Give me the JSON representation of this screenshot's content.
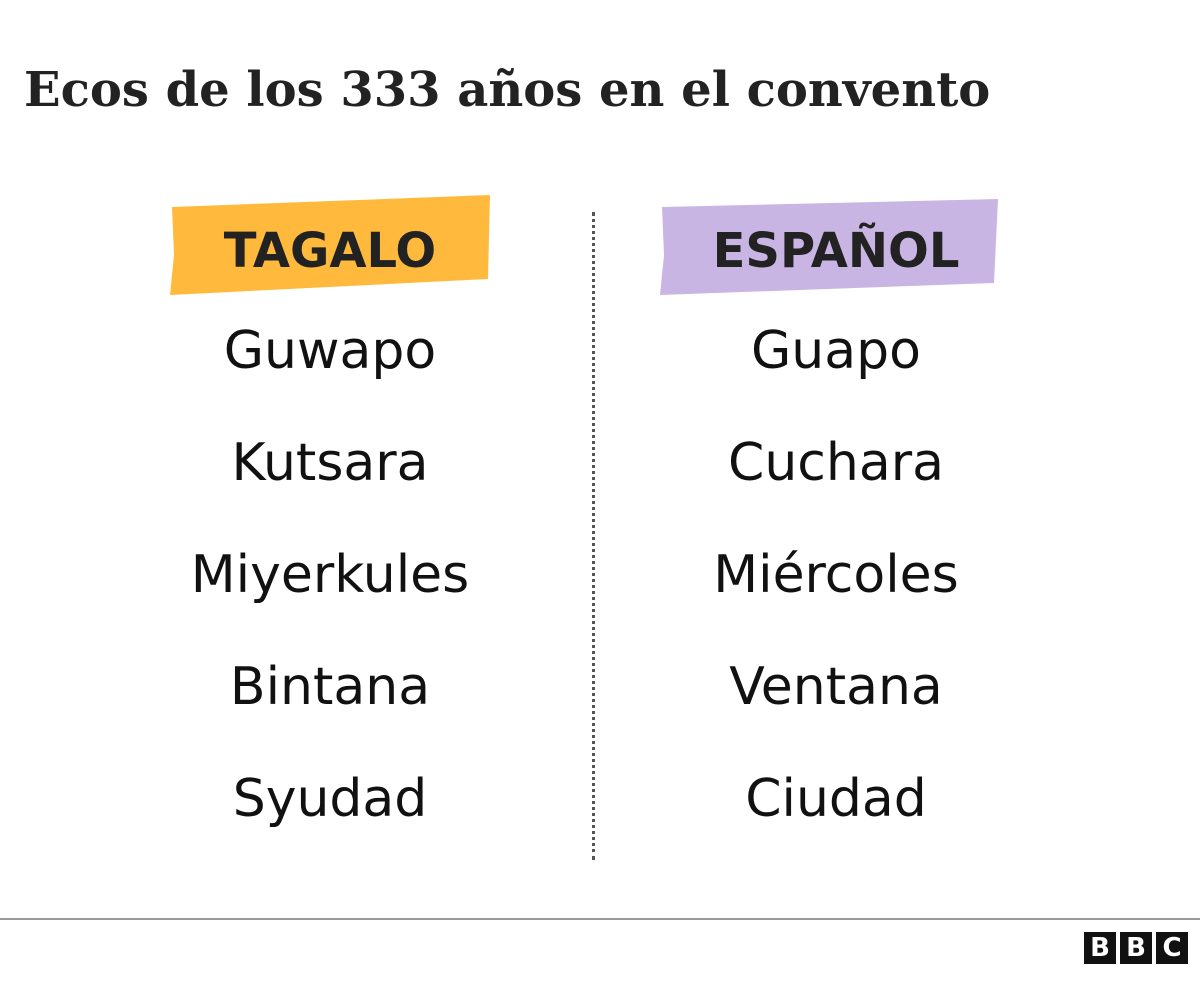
{
  "title": "Ecos de los 333 años en el convento",
  "columns": [
    {
      "header": "TAGALO",
      "words": [
        "Guwapo",
        "Kutsara",
        "Miyerkules",
        "Bintana",
        "Syudad"
      ]
    },
    {
      "header": "ESPAÑOL",
      "words": [
        "Guapo",
        "Cuchara",
        "Miércoles",
        "Ventana",
        "Ciudad"
      ]
    }
  ],
  "footer": {
    "logo": [
      "B",
      "B",
      "C"
    ]
  }
}
